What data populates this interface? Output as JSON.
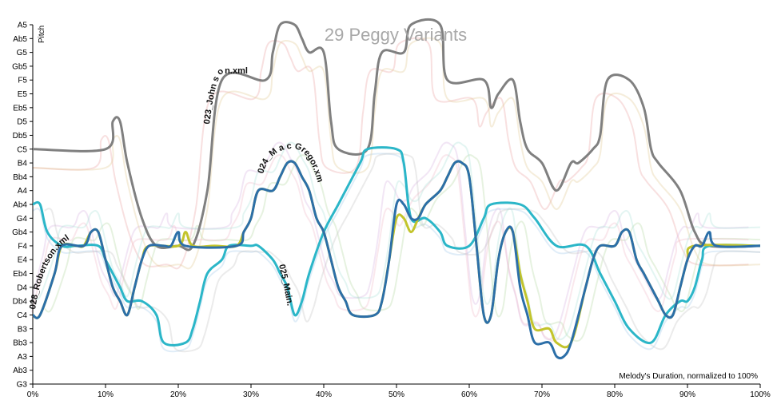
{
  "chart_data": {
    "type": "line",
    "title": "29 Peggy Variants",
    "xlabel": "Melody's Duration, normalized to 100%",
    "ylabel": "Pitch",
    "xlim": [
      0,
      100
    ],
    "x_tick_labels": [
      "0%",
      "10%",
      "20%",
      "30%",
      "40%",
      "50%",
      "60%",
      "70%",
      "80%",
      "90%",
      "100%"
    ],
    "y_tick_labels": [
      "A5",
      "Ab5",
      "G5",
      "Gb5",
      "F5",
      "E5",
      "Eb5",
      "D5",
      "Db5",
      "C5",
      "B4",
      "Bb4",
      "A4",
      "Ab4",
      "G4",
      "Gb4",
      "F4",
      "E4",
      "Eb4",
      "D4",
      "Db4",
      "C4",
      "B3",
      "Bb3",
      "A3",
      "Ab3",
      "G3"
    ],
    "ylim_semitones": [
      55,
      81
    ],
    "series": [
      {
        "name": "023_Johnson.xml",
        "color": "#808080",
        "label_text": "023_John s on.xml",
        "points": [
          [
            0,
            72
          ],
          [
            10,
            72
          ],
          [
            11,
            74
          ],
          [
            12,
            74
          ],
          [
            13,
            71
          ],
          [
            15,
            67
          ],
          [
            17,
            65
          ],
          [
            20,
            65
          ],
          [
            22,
            65
          ],
          [
            24,
            69
          ],
          [
            26,
            77
          ],
          [
            32,
            77
          ],
          [
            33,
            79
          ],
          [
            34,
            81
          ],
          [
            36,
            81
          ],
          [
            37,
            80
          ],
          [
            38,
            79
          ],
          [
            40,
            79
          ],
          [
            41,
            74
          ],
          [
            42,
            72
          ],
          [
            46,
            72
          ],
          [
            47,
            76
          ],
          [
            48,
            79
          ],
          [
            51,
            79
          ],
          [
            52,
            81
          ],
          [
            56,
            81
          ],
          [
            57,
            77
          ],
          [
            62,
            77
          ],
          [
            63,
            75
          ],
          [
            64,
            76
          ],
          [
            66,
            77
          ],
          [
            67,
            74
          ],
          [
            68,
            72
          ],
          [
            70,
            71
          ],
          [
            72,
            69
          ],
          [
            74,
            71
          ],
          [
            75,
            71
          ],
          [
            77,
            72
          ],
          [
            78,
            73
          ],
          [
            79,
            77
          ],
          [
            82,
            77
          ],
          [
            84,
            75
          ],
          [
            85,
            72
          ],
          [
            86,
            71
          ],
          [
            89,
            69
          ],
          [
            91,
            66
          ],
          [
            93,
            65
          ],
          [
            100,
            65
          ]
        ]
      },
      {
        "name": "025_Main.xml",
        "color": "#2bb6c8",
        "label_text": "025_Main.xml",
        "points": [
          [
            0,
            68
          ],
          [
            1,
            68
          ],
          [
            2,
            66
          ],
          [
            4,
            65
          ],
          [
            6,
            65
          ],
          [
            9,
            65
          ],
          [
            10,
            64
          ],
          [
            11,
            63
          ],
          [
            12,
            62
          ],
          [
            13,
            61
          ],
          [
            15,
            61
          ],
          [
            17,
            60
          ],
          [
            18,
            58
          ],
          [
            21,
            58
          ],
          [
            22,
            59
          ],
          [
            23,
            61
          ],
          [
            24,
            63
          ],
          [
            26,
            64
          ],
          [
            27,
            65
          ],
          [
            30,
            65
          ],
          [
            31,
            65
          ],
          [
            33,
            64
          ],
          [
            34,
            63
          ],
          [
            35,
            62
          ],
          [
            36,
            60
          ],
          [
            37,
            61
          ],
          [
            38,
            63
          ],
          [
            40,
            66
          ],
          [
            42,
            68
          ],
          [
            45,
            71
          ],
          [
            46,
            72
          ],
          [
            50,
            72
          ],
          [
            51,
            71
          ],
          [
            52,
            67
          ],
          [
            54,
            67
          ],
          [
            56,
            66
          ],
          [
            57,
            65
          ],
          [
            60,
            65
          ],
          [
            62,
            67
          ],
          [
            63,
            68
          ],
          [
            67,
            68
          ],
          [
            69,
            67
          ],
          [
            72,
            65
          ],
          [
            76,
            65
          ],
          [
            78,
            63
          ],
          [
            80,
            61
          ],
          [
            82,
            59
          ],
          [
            85,
            58
          ],
          [
            87,
            60
          ],
          [
            89,
            61
          ],
          [
            90,
            61
          ],
          [
            91,
            62
          ],
          [
            92,
            64
          ],
          [
            93,
            65
          ],
          [
            100,
            65
          ]
        ]
      },
      {
        "name": "028_Robertson.xml",
        "color": "#c3c42c",
        "label_text": "028_Robertson.xml",
        "points": [
          [
            0,
            60
          ],
          [
            1,
            60
          ],
          [
            3,
            63
          ],
          [
            4,
            65
          ],
          [
            6,
            65
          ],
          [
            7,
            65
          ],
          [
            8,
            66
          ],
          [
            9,
            66
          ],
          [
            10,
            64
          ],
          [
            11,
            62
          ],
          [
            12,
            61
          ],
          [
            13,
            60
          ],
          [
            14,
            62
          ],
          [
            15,
            64
          ],
          [
            16,
            65
          ],
          [
            20,
            65
          ],
          [
            21,
            66
          ],
          [
            22,
            65
          ],
          [
            25,
            65
          ],
          [
            28,
            65
          ],
          [
            29,
            66
          ],
          [
            30,
            67
          ],
          [
            31,
            69
          ],
          [
            33,
            69
          ],
          [
            34,
            70
          ],
          [
            35,
            71
          ],
          [
            36,
            71
          ],
          [
            37,
            70
          ],
          [
            38,
            69
          ],
          [
            39,
            67
          ],
          [
            40,
            66
          ],
          [
            41,
            64
          ],
          [
            42,
            62
          ],
          [
            43,
            61
          ],
          [
            44,
            60
          ],
          [
            47,
            60
          ],
          [
            48,
            61
          ],
          [
            49,
            64
          ],
          [
            50,
            67
          ],
          [
            51,
            67
          ],
          [
            52,
            66
          ],
          [
            53,
            67
          ],
          [
            54,
            68
          ],
          [
            56,
            69
          ],
          [
            57,
            70
          ],
          [
            58,
            71
          ],
          [
            59,
            71
          ],
          [
            60,
            70
          ],
          [
            61,
            65
          ],
          [
            62,
            60
          ],
          [
            63,
            60
          ],
          [
            64,
            64
          ],
          [
            65,
            66
          ],
          [
            66,
            66
          ],
          [
            67,
            63
          ],
          [
            68,
            61
          ],
          [
            69,
            59
          ],
          [
            71,
            59
          ],
          [
            72,
            58
          ],
          [
            74,
            58
          ],
          [
            76,
            62
          ],
          [
            77,
            64
          ],
          [
            78,
            65
          ],
          [
            80,
            65
          ],
          [
            81,
            66
          ],
          [
            82,
            66
          ],
          [
            83,
            64
          ],
          [
            84,
            63
          ],
          [
            85,
            62
          ],
          [
            86,
            61
          ],
          [
            87,
            60
          ],
          [
            88,
            60
          ],
          [
            89,
            62
          ],
          [
            90,
            64
          ],
          [
            91,
            65
          ],
          [
            100,
            65
          ]
        ]
      },
      {
        "name": "024_MacGregor.xml",
        "color": "#2c6fa8",
        "label_text": "024_M a c Gregor.xml",
        "points": [
          [
            0,
            60
          ],
          [
            1,
            60
          ],
          [
            3,
            63
          ],
          [
            4,
            65
          ],
          [
            7,
            65
          ],
          [
            8,
            66
          ],
          [
            9,
            66
          ],
          [
            10,
            64
          ],
          [
            11,
            62
          ],
          [
            12,
            61
          ],
          [
            13,
            60
          ],
          [
            14,
            62
          ],
          [
            15,
            64
          ],
          [
            16,
            65
          ],
          [
            18,
            65
          ],
          [
            19,
            65
          ],
          [
            20,
            66
          ],
          [
            21,
            65
          ],
          [
            28,
            65
          ],
          [
            29,
            66
          ],
          [
            30,
            67
          ],
          [
            31,
            69
          ],
          [
            33,
            69
          ],
          [
            34,
            70
          ],
          [
            35,
            71
          ],
          [
            36,
            71
          ],
          [
            37,
            70
          ],
          [
            38,
            69
          ],
          [
            39,
            67
          ],
          [
            40,
            66
          ],
          [
            41,
            64
          ],
          [
            42,
            62
          ],
          [
            43,
            61
          ],
          [
            44,
            60
          ],
          [
            47,
            60
          ],
          [
            48,
            61
          ],
          [
            49,
            64
          ],
          [
            50,
            68
          ],
          [
            51,
            68
          ],
          [
            52,
            67
          ],
          [
            53,
            67
          ],
          [
            54,
            68
          ],
          [
            56,
            69
          ],
          [
            57,
            70
          ],
          [
            58,
            71
          ],
          [
            59,
            71
          ],
          [
            60,
            70
          ],
          [
            61,
            65
          ],
          [
            62,
            60
          ],
          [
            63,
            60
          ],
          [
            64,
            64
          ],
          [
            65,
            66
          ],
          [
            66,
            66
          ],
          [
            67,
            62
          ],
          [
            68,
            60
          ],
          [
            69,
            58
          ],
          [
            71,
            58
          ],
          [
            72,
            57
          ],
          [
            73,
            57
          ],
          [
            74,
            58
          ],
          [
            76,
            62
          ],
          [
            77,
            64
          ],
          [
            78,
            65
          ],
          [
            80,
            65
          ],
          [
            81,
            66
          ],
          [
            82,
            66
          ],
          [
            83,
            64
          ],
          [
            84,
            63
          ],
          [
            85,
            62
          ],
          [
            86,
            61
          ],
          [
            87,
            60
          ],
          [
            88,
            60
          ],
          [
            89,
            62
          ],
          [
            90,
            64
          ],
          [
            91,
            65
          ],
          [
            92,
            65
          ],
          [
            93,
            66
          ],
          [
            94,
            65
          ],
          [
            100,
            65
          ]
        ]
      }
    ],
    "faint_series_colors": [
      "#e8a0a0",
      "#a0c8e8",
      "#b0d8a0",
      "#d8b0e0",
      "#e0c890",
      "#c0c0c0",
      "#f0b8c8",
      "#a8e0d8"
    ]
  }
}
